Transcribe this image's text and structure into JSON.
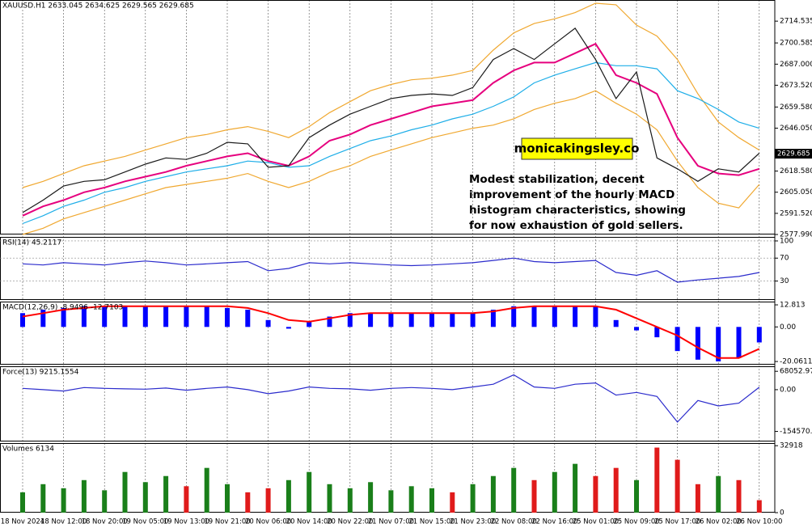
{
  "chart_data": [
    {
      "type": "line",
      "title": "XAUUSD.H1 2633.045 2634.625 2629.565 2629.685",
      "ylim": [
        2577.99,
        2728.065
      ],
      "yticks": [
        2714.535,
        2700.585,
        {
          "value": 2687,
          "label": "2687.000"
        },
        {
          "value": 2673.52,
          "label": "2673.520"
        },
        {
          "value": 2659.58,
          "label": "2659.580"
        },
        {
          "value": 2646.05,
          "label": "2646.050"
        },
        {
          "value": 2618.58,
          "label": "2618.580"
        },
        {
          "value": 2605.05,
          "label": "2605.050"
        },
        {
          "value": 2591.52,
          "label": "2591.520"
        },
        {
          "value": 2577.99,
          "label": "2577.990"
        }
      ],
      "last_price": 2629.685,
      "site": "monicakingsley.co",
      "comment": [
        "Modest stabilization, decent",
        "improvement of the hourly MACD",
        "histogram characteristics, showing",
        "for now exhaustion of gold sellers."
      ],
      "series": [
        {
          "color": "#f0a830",
          "style": "line",
          "values": [
            2608,
            2612,
            2617,
            2622,
            2625,
            2628,
            2632,
            2636,
            2640,
            2642,
            2645,
            2647,
            2644,
            2640,
            2647,
            2656,
            2663,
            2670,
            2674,
            2677,
            2678,
            2680,
            2683,
            2696,
            2707,
            2713,
            2716,
            2720,
            2726,
            2725,
            2712,
            2705,
            2690,
            2668,
            2650,
            2640,
            2632
          ]
        },
        {
          "color": "#f0a830",
          "style": "line",
          "values": [
            2578,
            2582,
            2588,
            2592,
            2596,
            2600,
            2604,
            2608,
            2610,
            2612,
            2614,
            2617,
            2612,
            2608,
            2612,
            2618,
            2622,
            2628,
            2632,
            2636,
            2640,
            2643,
            2646,
            2648,
            2652,
            2658,
            2662,
            2665,
            2670,
            2662,
            2655,
            2645,
            2625,
            2608,
            2598,
            2595,
            2610
          ]
        },
        {
          "color": "#1eaee8",
          "style": "line",
          "values": [
            2585,
            2590,
            2596,
            2600,
            2605,
            2608,
            2612,
            2615,
            2618,
            2620,
            2622,
            2625,
            2624,
            2621,
            2622,
            2628,
            2633,
            2638,
            2641,
            2645,
            2648,
            2652,
            2655,
            2660,
            2666,
            2675,
            2680,
            2684,
            2688,
            2686,
            2686,
            2684,
            2670,
            2665,
            2658,
            2650,
            2646
          ]
        },
        {
          "color": "#e6007e",
          "style": "line",
          "values": [
            2590,
            2596,
            2600,
            2605,
            2608,
            2612,
            2615,
            2618,
            2622,
            2625,
            2628,
            2630,
            2625,
            2622,
            2628,
            2638,
            2642,
            2648,
            2652,
            2656,
            2660,
            2662,
            2664,
            2675,
            2683,
            2688,
            2688,
            2694,
            2700,
            2680,
            2675,
            2668,
            2640,
            2622,
            2617,
            2616,
            2620
          ]
        },
        {
          "color": "#1a1a1a",
          "style": "line",
          "values": [
            2592,
            2600,
            2609,
            2612,
            2613,
            2618,
            2623,
            2627,
            2626,
            2630,
            2637,
            2636,
            2621,
            2622,
            2640,
            2648,
            2655,
            2660,
            2665,
            2667,
            2668,
            2667,
            2672,
            2690,
            2697,
            2690,
            2700,
            2710,
            2690,
            2665,
            2682,
            2627,
            2620,
            2612,
            2620,
            2618,
            2630
          ]
        }
      ]
    },
    {
      "type": "line",
      "title": "RSI(14) 45.2117",
      "ylim": [
        -3,
        107
      ],
      "yticks": [
        100,
        70,
        30
      ],
      "grid": true,
      "series": [
        {
          "color": "#2b2bcc",
          "style": "line",
          "values": [
            60,
            58,
            62,
            60,
            58,
            62,
            65,
            62,
            58,
            60,
            62,
            64,
            48,
            52,
            62,
            60,
            62,
            60,
            58,
            57,
            58,
            60,
            62,
            66,
            70,
            64,
            62,
            64,
            66,
            45,
            40,
            48,
            28,
            32,
            35,
            38,
            45
          ]
        }
      ]
    },
    {
      "type": "bar",
      "title": "MACD(12,26,9) -8.9496 -12.7103",
      "ylim": [
        -21.9,
        14.7
      ],
      "yticks": [
        12.813,
        {
          "value": 0,
          "label": "0.00"
        },
        -20.0611
      ],
      "series": [
        {
          "color": "#0000ff",
          "style": "bar",
          "values": [
            8,
            10,
            11,
            12,
            12,
            12,
            12,
            12,
            12,
            12,
            11,
            10,
            4,
            -1,
            3,
            6,
            8,
            8,
            8,
            8,
            8,
            8,
            8,
            10,
            12,
            12,
            12,
            12,
            12,
            4,
            -2,
            -6,
            -14,
            -19,
            -20,
            -18,
            -9
          ]
        },
        {
          "color": "#ff0000",
          "style": "line",
          "values": [
            6,
            8,
            10,
            11,
            12,
            12,
            12,
            12,
            12,
            12,
            12,
            11,
            8,
            4,
            3,
            5,
            7,
            8,
            8,
            8,
            8,
            8,
            8,
            9,
            11,
            12,
            12,
            12,
            12,
            10,
            5,
            0,
            -5,
            -12,
            -18,
            -18,
            -12.7
          ]
        }
      ]
    },
    {
      "type": "line",
      "title": "Force(13) 9215.1554",
      "ylim": [
        -191800,
        86600
      ],
      "yticks": [
        68052.9782,
        {
          "value": 0,
          "label": "0.00"
        },
        {
          "value": -154570.39,
          "label": "-154570.39"
        }
      ],
      "series": [
        {
          "color": "#2b2bcc",
          "style": "line",
          "values": [
            5000,
            0,
            -5000,
            8000,
            5000,
            3000,
            2000,
            6000,
            -2000,
            5000,
            10000,
            0,
            -15000,
            -5000,
            10000,
            5000,
            3000,
            -2000,
            5000,
            8000,
            5000,
            0,
            10000,
            20000,
            55000,
            10000,
            5000,
            20000,
            25000,
            -20000,
            -10000,
            -25000,
            -120000,
            -40000,
            -60000,
            -50000,
            9215
          ]
        }
      ]
    },
    {
      "type": "bar",
      "title": "Volumes 6134",
      "ylim": [
        0,
        34200
      ],
      "yticks": [
        32918,
        0
      ],
      "categories": [
        "18 Nov 2024",
        null,
        "18 Nov 12:00",
        null,
        "18 Nov 20:00",
        null,
        "19 Nov 05:00",
        null,
        "19 Nov 13:00",
        null,
        "19 Nov 21:00",
        null,
        "20 Nov 06:00",
        null,
        "20 Nov 14:00",
        null,
        "20 Nov 22:00",
        null,
        "21 Nov 07:00",
        null,
        "21 Nov 15:00",
        null,
        "21 Nov 23:00",
        null,
        "22 Nov 08:00",
        null,
        "22 Nov 16:00",
        null,
        "25 Nov 01:00",
        null,
        "25 Nov 09:00",
        null,
        "25 Nov 17:00",
        null,
        "26 Nov 02:00",
        null,
        "26 Nov 10:00"
      ],
      "series": [
        {
          "style": "bar",
          "values": [
            10000,
            14000,
            12000,
            16000,
            11000,
            20000,
            15000,
            18000,
            13000,
            22000,
            14000,
            10000,
            12000,
            16000,
            20000,
            14000,
            12000,
            15000,
            11000,
            13000,
            12000,
            10000,
            14000,
            18000,
            22000,
            16000,
            20000,
            24000,
            18000,
            22000,
            16000,
            32000,
            26000,
            14000,
            18000,
            16000,
            6134
          ],
          "colors": [
            "#1a7f1a",
            "#1a7f1a",
            "#1a7f1a",
            "#1a7f1a",
            "#1a7f1a",
            "#1a7f1a",
            "#1a7f1a",
            "#1a7f1a",
            "#e01b1b",
            "#1a7f1a",
            "#1a7f1a",
            "#e01b1b",
            "#e01b1b",
            "#1a7f1a",
            "#1a7f1a",
            "#1a7f1a",
            "#1a7f1a",
            "#1a7f1a",
            "#1a7f1a",
            "#1a7f1a",
            "#1a7f1a",
            "#e01b1b",
            "#1a7f1a",
            "#1a7f1a",
            "#1a7f1a",
            "#e01b1b",
            "#1a7f1a",
            "#1a7f1a",
            "#e01b1b",
            "#e01b1b",
            "#1a7f1a",
            "#e01b1b",
            "#e01b1b",
            "#e01b1b",
            "#1a7f1a",
            "#e01b1b",
            "#e01b1b"
          ]
        }
      ]
    }
  ]
}
